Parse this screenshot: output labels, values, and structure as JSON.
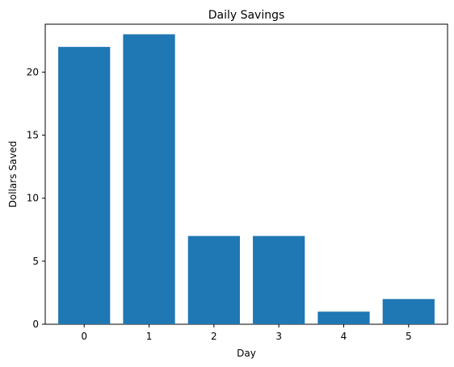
{
  "chart_data": {
    "type": "bar",
    "title": "Daily Savings",
    "xlabel": "Day",
    "ylabel": "Dollars Saved",
    "categories": [
      "0",
      "1",
      "2",
      "3",
      "4",
      "5"
    ],
    "values": [
      22,
      23,
      7,
      7,
      1,
      2
    ],
    "ylim": [
      0,
      23.8
    ],
    "yticks": [
      0,
      5,
      10,
      15,
      20
    ],
    "grid": false,
    "legend": "none",
    "bar_color": "#1f77b4"
  }
}
